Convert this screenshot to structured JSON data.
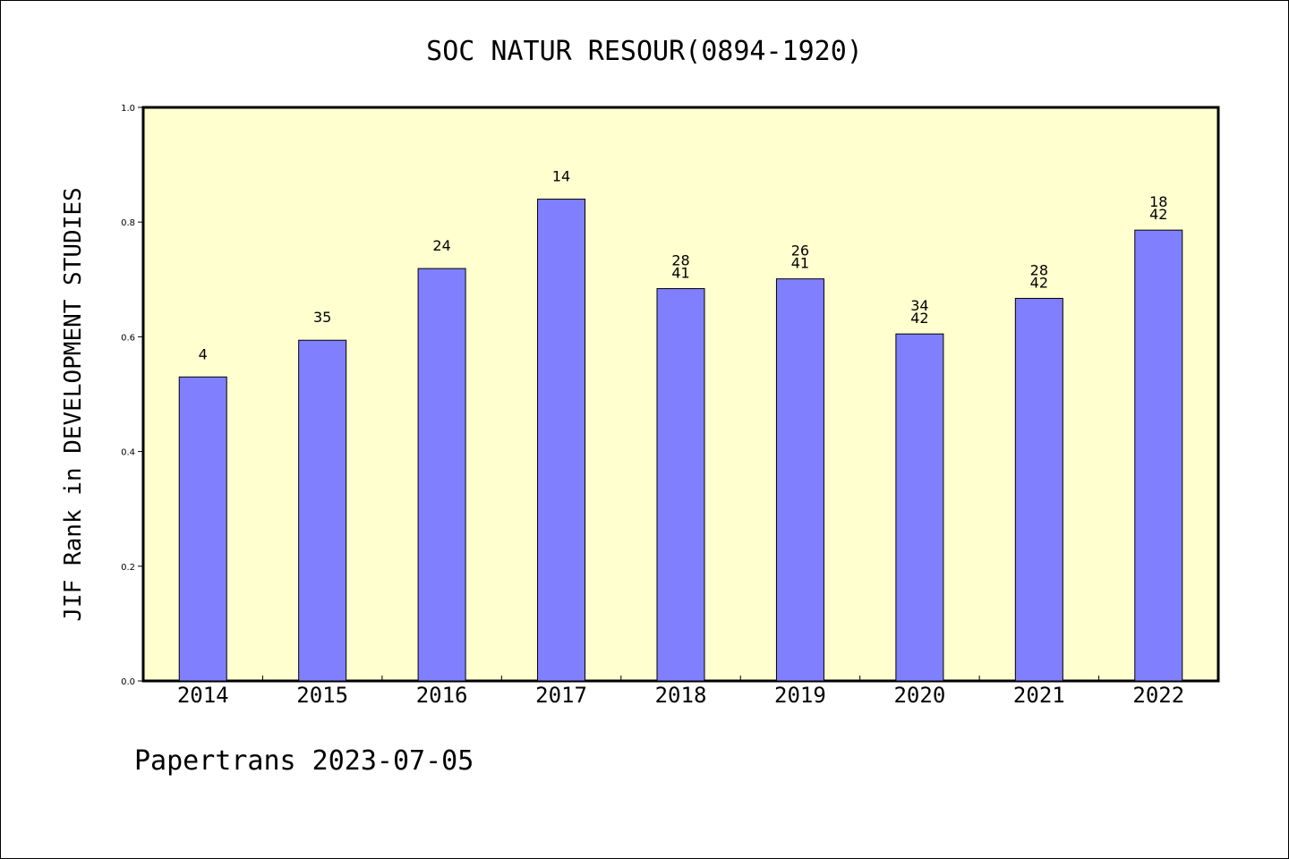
{
  "chart_data": {
    "type": "bar",
    "title": "SOC NATUR RESOUR(0894-1920)",
    "ylabel": "JIF Rank in DEVELOPMENT STUDIES",
    "xlabel": "",
    "ylim": [
      0,
      1.0
    ],
    "yticks": [
      "0.0",
      "0.2",
      "0.4",
      "0.6",
      "0.8",
      "1.0"
    ],
    "grid": false,
    "categories": [
      "2014",
      "2015",
      "2016",
      "2017",
      "2018",
      "2019",
      "2020",
      "2021",
      "2022"
    ],
    "values": [
      0.53,
      0.594,
      0.719,
      0.84,
      0.684,
      0.701,
      0.605,
      0.667,
      0.786
    ],
    "bar_labels": [
      [
        "4"
      ],
      [
        "35"
      ],
      [
        "24"
      ],
      [
        "14"
      ],
      [
        "28",
        "41"
      ],
      [
        "26",
        "41"
      ],
      [
        "34",
        "42"
      ],
      [
        "28",
        "42"
      ],
      [
        "18",
        "42"
      ]
    ],
    "colors": {
      "bar": "#8080ff",
      "plot_bg": "#ffffd0",
      "axis": "#000000"
    }
  },
  "footer": {
    "text": "Papertrans 2023-07-05"
  }
}
